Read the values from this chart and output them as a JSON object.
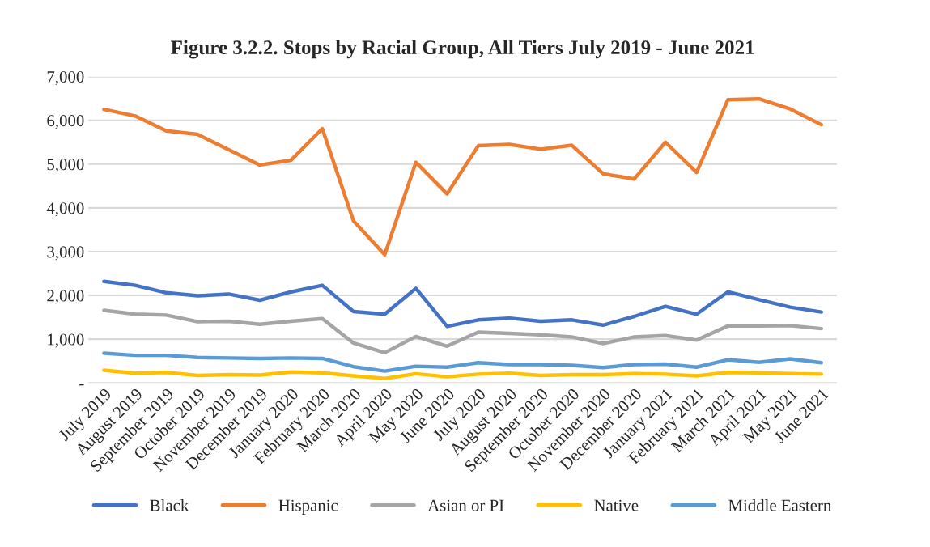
{
  "chart_data": {
    "type": "line",
    "title": "Figure 3.2.2. Stops by Racial Group, All Tiers July 2019 - June 2021",
    "categories": [
      "July 2019",
      "August 2019",
      "September 2019",
      "October 2019",
      "November 2019",
      "December 2019",
      "January 2020",
      "February 2020",
      "March 2020",
      "April 2020",
      "May 2020",
      "June 2020",
      "July 2020",
      "August 2020",
      "September 2020",
      "October 2020",
      "November 2020",
      "December 2020",
      "January 2021",
      "February 2021",
      "March 2021",
      "April 2021",
      "May 2021",
      "June 2021"
    ],
    "series": [
      {
        "name": "Black",
        "color": "#4472c4",
        "values": [
          2320,
          2230,
          2060,
          1990,
          2030,
          1890,
          2080,
          2230,
          1630,
          1570,
          2160,
          1290,
          1440,
          1480,
          1410,
          1440,
          1320,
          1520,
          1750,
          1570,
          2080,
          1900,
          1730,
          1620
        ]
      },
      {
        "name": "Hispanic",
        "color": "#ed7d31",
        "values": [
          6250,
          6100,
          5760,
          5680,
          5330,
          4980,
          5090,
          5810,
          3700,
          2930,
          5040,
          4320,
          5420,
          5450,
          5340,
          5430,
          4780,
          4660,
          5500,
          4810,
          6470,
          6490,
          6260,
          5900
        ]
      },
      {
        "name": "Asian or PI",
        "color": "#a5a5a5",
        "values": [
          1660,
          1570,
          1550,
          1400,
          1410,
          1340,
          1410,
          1470,
          910,
          690,
          1060,
          840,
          1160,
          1130,
          1100,
          1050,
          900,
          1050,
          1080,
          980,
          1300,
          1300,
          1310,
          1240
        ]
      },
      {
        "name": "Native",
        "color": "#ffc000",
        "values": [
          290,
          220,
          240,
          170,
          190,
          180,
          250,
          230,
          160,
          100,
          210,
          140,
          200,
          220,
          170,
          190,
          190,
          210,
          200,
          160,
          240,
          230,
          210,
          200
        ]
      },
      {
        "name": "Middle Eastern",
        "color": "#5b9bd5",
        "values": [
          680,
          630,
          630,
          580,
          570,
          560,
          570,
          560,
          370,
          270,
          380,
          360,
          460,
          420,
          420,
          400,
          350,
          420,
          430,
          360,
          530,
          470,
          550,
          460
        ]
      }
    ],
    "ylim": [
      0,
      7000
    ],
    "yticks": [
      {
        "value": 0,
        "label": "-"
      },
      {
        "value": 1000,
        "label": "1,000"
      },
      {
        "value": 2000,
        "label": "2,000"
      },
      {
        "value": 3000,
        "label": "3,000"
      },
      {
        "value": 4000,
        "label": "4,000"
      },
      {
        "value": 5000,
        "label": "5,000"
      },
      {
        "value": 6000,
        "label": "6,000"
      },
      {
        "value": 7000,
        "label": "7,000"
      }
    ],
    "grid": "y",
    "legend": "bottom",
    "marker": "none",
    "line_style": "solid"
  }
}
